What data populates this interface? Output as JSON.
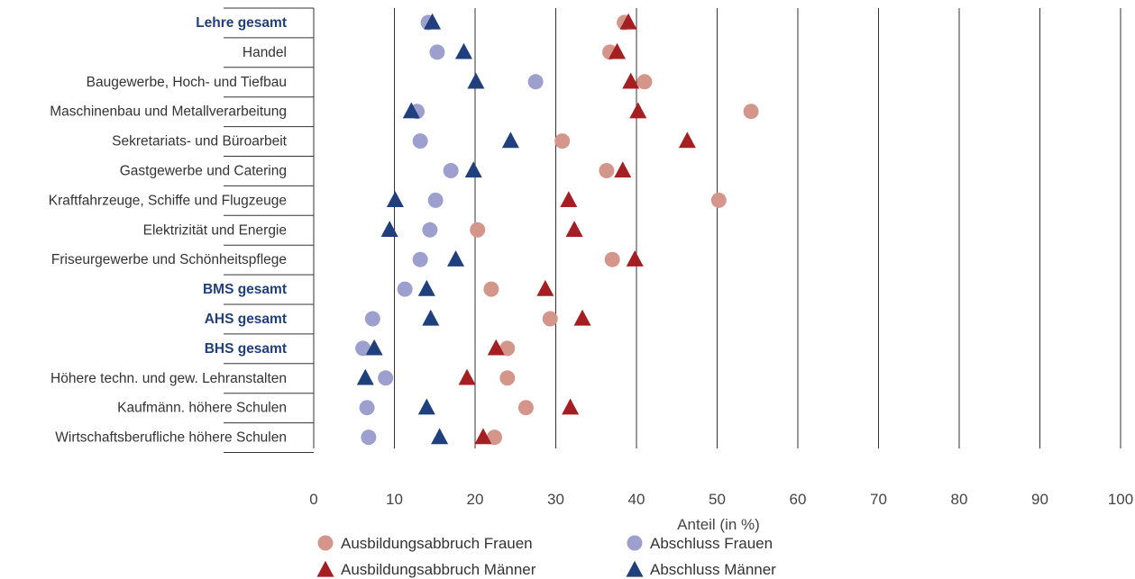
{
  "chart_data": {
    "type": "scatter",
    "orientation": "horizontal-categories",
    "xlabel": "Anteil (in %)",
    "xlim": [
      0,
      100
    ],
    "xticks": [
      0,
      10,
      20,
      30,
      40,
      50,
      60,
      70,
      80,
      90,
      100
    ],
    "grid": "vertical",
    "legend_position": "bottom",
    "categories": [
      "Lehre gesamt",
      "Handel",
      "Baugewerbe, Hoch- und Tiefbau",
      "Maschinenbau und Metallverarbeitung",
      "Sekretariats- und Büroarbeit",
      "Gastgewerbe und Catering",
      "Kraftfahrzeuge, Schiffe und Flugzeuge",
      "Elektrizität und Energie",
      "Friseurgewerbe und Schönheitspflege",
      "BMS gesamt",
      "AHS gesamt",
      "BHS gesamt",
      "Höhere techn. und gew. Lehranstalten",
      "Kaufmänn. höhere Schulen",
      "Wirtschaftsberufliche höhere Schulen"
    ],
    "highlighted_categories": [
      "Lehre gesamt",
      "BMS gesamt",
      "AHS gesamt",
      "BHS gesamt"
    ],
    "series": [
      {
        "name": "Ausbildungsabbruch Frauen",
        "marker": "circle",
        "color": "#d4968a",
        "values": [
          38.5,
          36.7,
          41.0,
          54.2,
          30.8,
          36.3,
          50.2,
          20.3,
          37.0,
          22.0,
          29.3,
          24.0,
          24.0,
          26.3,
          22.4
        ]
      },
      {
        "name": "Abschluss Frauen",
        "marker": "circle",
        "color": "#9d9fce",
        "values": [
          14.2,
          15.3,
          27.5,
          12.8,
          13.2,
          17.0,
          15.1,
          14.4,
          13.2,
          11.3,
          7.3,
          6.1,
          8.9,
          6.6,
          6.8
        ]
      },
      {
        "name": "Ausbildungsabbruch Männer",
        "marker": "triangle",
        "color": "#a51e22",
        "values": [
          39.0,
          37.6,
          39.3,
          40.2,
          46.3,
          38.3,
          31.6,
          32.3,
          39.8,
          28.7,
          33.3,
          22.6,
          19.0,
          31.8,
          21.0
        ]
      },
      {
        "name": "Abschluss Männer",
        "marker": "triangle",
        "color": "#1f3f7d",
        "values": [
          14.7,
          18.6,
          20.1,
          12.1,
          24.4,
          19.8,
          10.1,
          9.4,
          17.6,
          14.0,
          14.5,
          7.5,
          6.4,
          14.0,
          15.6
        ]
      }
    ]
  },
  "colors": {
    "category_highlight": "#1f3f7d",
    "category_normal": "#333333",
    "grid": "#333333",
    "axis_text": "#444444"
  }
}
